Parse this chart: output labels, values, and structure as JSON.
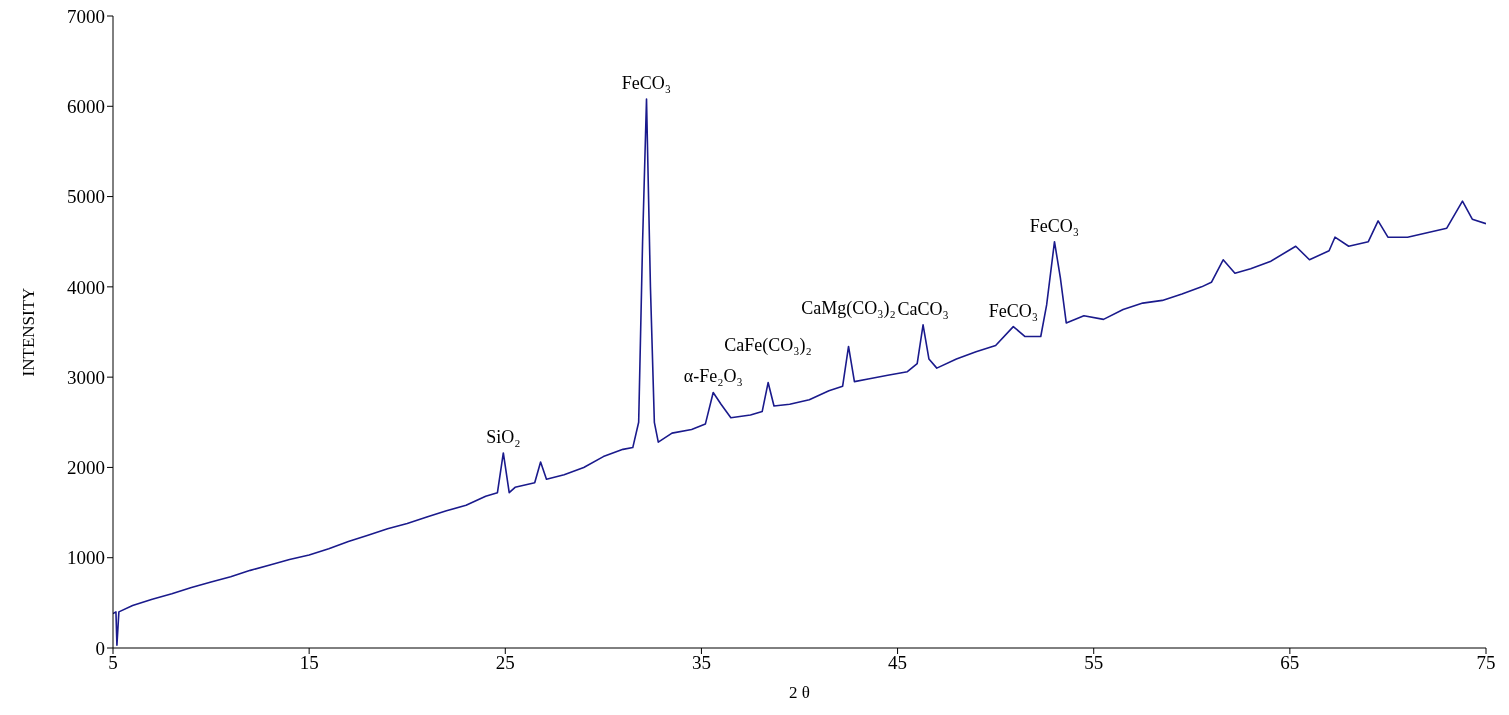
{
  "chart_data": {
    "type": "line",
    "xlabel": "2 θ",
    "ylabel": "INTENSITY",
    "xlim": [
      5,
      75
    ],
    "xticks": [
      5,
      15,
      25,
      35,
      45,
      55,
      65,
      75
    ],
    "ylim": [
      0,
      7000
    ],
    "yticks": [
      0,
      1000,
      2000,
      3000,
      4000,
      5000,
      6000,
      7000
    ],
    "grid": false,
    "legend": false,
    "marker": "none",
    "line_style": "solid",
    "x": [
      5,
      5.15,
      5.2,
      5.3,
      6,
      7,
      8,
      9,
      10,
      11,
      12,
      13,
      14,
      15,
      16,
      17,
      18,
      19,
      20,
      21,
      22,
      23,
      24,
      24.6,
      24.9,
      25.2,
      25.5,
      26.5,
      26.8,
      27.1,
      28,
      29,
      30,
      31,
      31.5,
      31.8,
      32.0,
      32.2,
      32.4,
      32.6,
      32.8,
      33.5,
      34.5,
      35.2,
      35.6,
      36,
      36.5,
      37.5,
      38.1,
      38.4,
      38.7,
      39.5,
      40.5,
      41.5,
      42.2,
      42.5,
      42.8,
      43.5,
      44.5,
      45.5,
      46,
      46.3,
      46.6,
      47,
      48,
      49,
      50,
      50.9,
      51.5,
      52.3,
      52.6,
      53.0,
      53.3,
      53.6,
      54.5,
      55.5,
      56.5,
      57.5,
      58.5,
      59.5,
      60.5,
      61,
      61.6,
      62.2,
      63,
      64,
      65.3,
      66,
      67,
      67.3,
      68,
      69,
      69.5,
      70,
      71,
      72,
      73,
      73.8,
      74.3,
      75
    ],
    "series": [
      {
        "color": "#1a1a8c",
        "values": [
          380,
          400,
          30,
          400,
          470,
          540,
          600,
          670,
          730,
          790,
          860,
          920,
          980,
          1030,
          1100,
          1180,
          1250,
          1320,
          1380,
          1450,
          1520,
          1580,
          1680,
          1720,
          2160,
          1720,
          1780,
          1830,
          2060,
          1870,
          1920,
          2000,
          2120,
          2200,
          2220,
          2500,
          4500,
          6080,
          4000,
          2500,
          2280,
          2380,
          2420,
          2480,
          2830,
          2700,
          2550,
          2580,
          2620,
          2940,
          2680,
          2700,
          2750,
          2850,
          2900,
          3340,
          2950,
          2980,
          3020,
          3060,
          3150,
          3580,
          3200,
          3100,
          3200,
          3280,
          3350,
          3560,
          3450,
          3450,
          3800,
          4500,
          4100,
          3600,
          3680,
          3640,
          3750,
          3820,
          3850,
          3920,
          4000,
          4050,
          4300,
          4150,
          4200,
          4280,
          4450,
          4300,
          4400,
          4550,
          4450,
          4500,
          4730,
          4550,
          4550,
          4600,
          4650,
          4950,
          4750,
          4700
        ]
      }
    ],
    "annotations": [
      {
        "text": "SiO₂",
        "x": 24.9,
        "y": 2160
      },
      {
        "text": "FeCO₃",
        "x": 32.2,
        "y": 6080
      },
      {
        "text": "α-Fe₂O₃",
        "x": 35.6,
        "y": 2830
      },
      {
        "text": "CaFe(CO₃)₂",
        "x": 38.4,
        "y": 2940
      },
      {
        "text": "CaMg(CO₃)₂",
        "x": 42.5,
        "y": 3340
      },
      {
        "text": "CaCO₃",
        "x": 46.3,
        "y": 3580
      },
      {
        "text": "FeCO₃",
        "x": 50.9,
        "y": 3560
      },
      {
        "text": "FeCO₃",
        "x": 53.0,
        "y": 4500
      }
    ]
  }
}
